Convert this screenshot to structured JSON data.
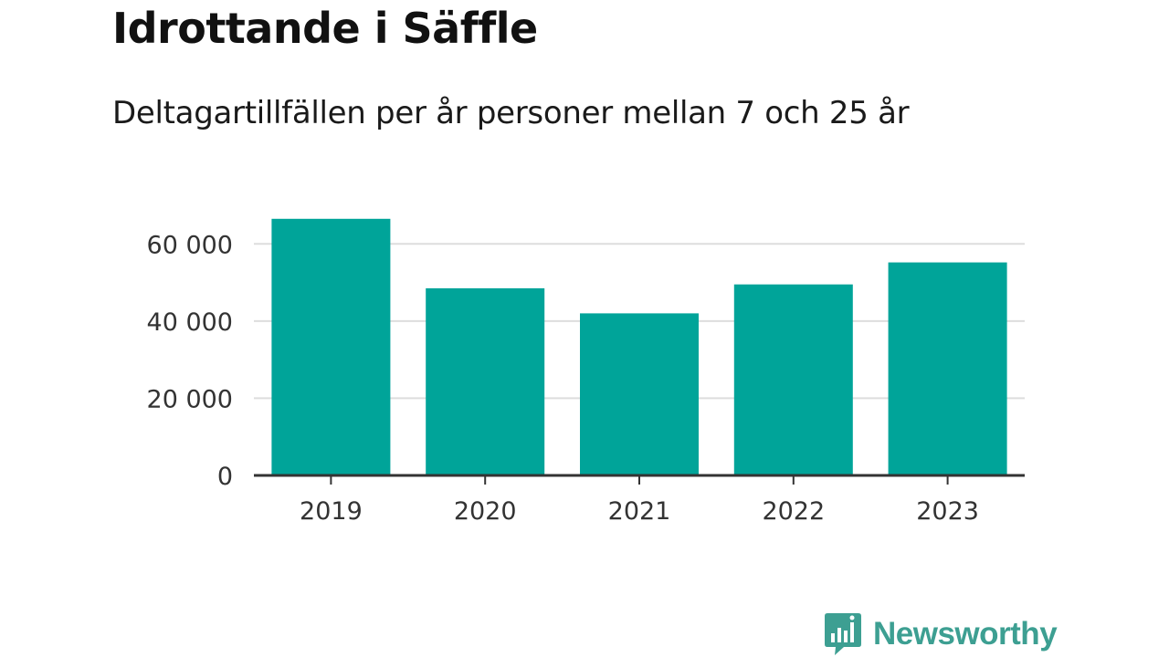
{
  "title": "Idrottande i Säffle",
  "subtitle": "Deltagartillfällen per år personer mellan 7 och 25 år",
  "colors": {
    "bar": "#00a499",
    "grid": "#dddddd",
    "axis": "#333333",
    "brand": "#3d9f92"
  },
  "brand": {
    "name": "Newsworthy",
    "icon": "newsworthy-chart-icon"
  },
  "chart_data": {
    "type": "bar",
    "categories": [
      "2019",
      "2020",
      "2021",
      "2022",
      "2023"
    ],
    "values": [
      66500,
      48500,
      42000,
      49500,
      55200
    ],
    "title": "Idrottande i Säffle",
    "subtitle": "Deltagartillfällen per år personer mellan 7 och 25 år",
    "xlabel": "",
    "ylabel": "",
    "ylim": [
      0,
      70000
    ],
    "yticks": [
      0,
      20000,
      40000,
      60000
    ],
    "ytick_labels": [
      "0",
      "20 000",
      "40 000",
      "60 000"
    ],
    "grid": true,
    "legend": "none"
  }
}
